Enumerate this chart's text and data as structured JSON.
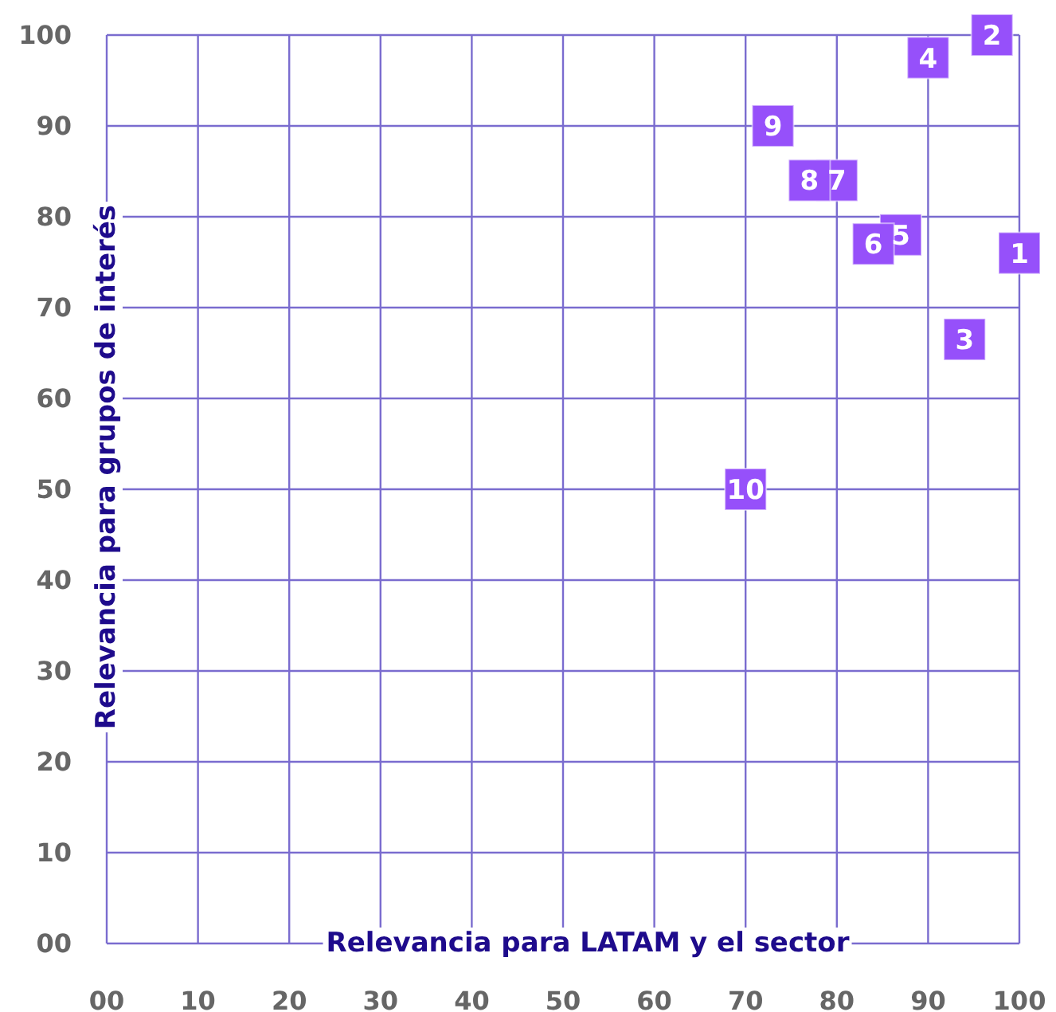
{
  "chart_data": {
    "type": "scatter",
    "xlabel": "Relevancia para LATAM y el sector",
    "ylabel": "Relevancia para grupos de interés",
    "x": [
      100,
      97,
      94,
      90,
      87,
      84,
      80,
      77,
      73,
      70
    ],
    "values": [
      76,
      100,
      66.5,
      97.5,
      78,
      77,
      84,
      84,
      90,
      50
    ],
    "annotations": [
      {
        "text": "1",
        "x": 100,
        "y": 76
      },
      {
        "text": "2",
        "x": 97,
        "y": 100
      },
      {
        "text": "3",
        "x": 94,
        "y": 66.5
      },
      {
        "text": "4",
        "x": 90,
        "y": 97.5
      },
      {
        "text": "5",
        "x": 87,
        "y": 78
      },
      {
        "text": "6",
        "x": 84,
        "y": 77
      },
      {
        "text": "7",
        "x": 80,
        "y": 84
      },
      {
        "text": "8",
        "x": 77,
        "y": 84
      },
      {
        "text": "9",
        "x": 73,
        "y": 90
      },
      {
        "text": "10",
        "x": 70,
        "y": 50
      }
    ],
    "color": "#9650fa",
    "marker": "square",
    "grid": true,
    "xlim": [
      0,
      100
    ],
    "xticks": [
      {
        "value": 0,
        "label": "00"
      },
      10,
      20,
      30,
      40,
      50,
      60,
      70,
      80,
      90,
      100
    ],
    "ylim": [
      0,
      100
    ],
    "yticks": [
      {
        "value": 0,
        "label": "00"
      },
      10,
      20,
      30,
      40,
      50,
      60,
      70,
      80,
      90,
      100
    ]
  }
}
